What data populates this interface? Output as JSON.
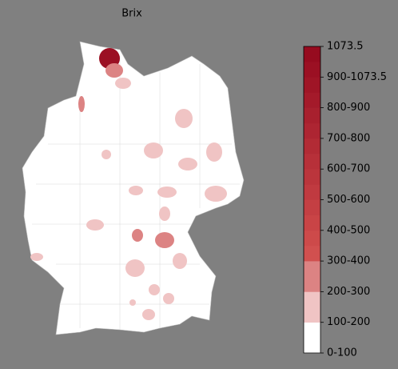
{
  "chart_data": {
    "type": "choropleth",
    "title": "Brix",
    "colorbar": {
      "labels": [
        "0-100",
        "100-200",
        "200-300",
        "300-400",
        "400-500",
        "500-600",
        "600-700",
        "700-800",
        "800-900",
        "900-1073.5",
        "1073.5"
      ],
      "colors": [
        "#ffffff",
        "#f0c4c4",
        "#dc8383",
        "#d1504f",
        "#cd4a4a",
        "#c94446",
        "#c43f43",
        "#c03a40",
        "#bb353c",
        "#b73039",
        "#b22b35",
        "#ad2532",
        "#a8202e",
        "#a41a2a",
        "#9f1526",
        "#9b1023",
        "#960b1f"
      ]
    }
  }
}
